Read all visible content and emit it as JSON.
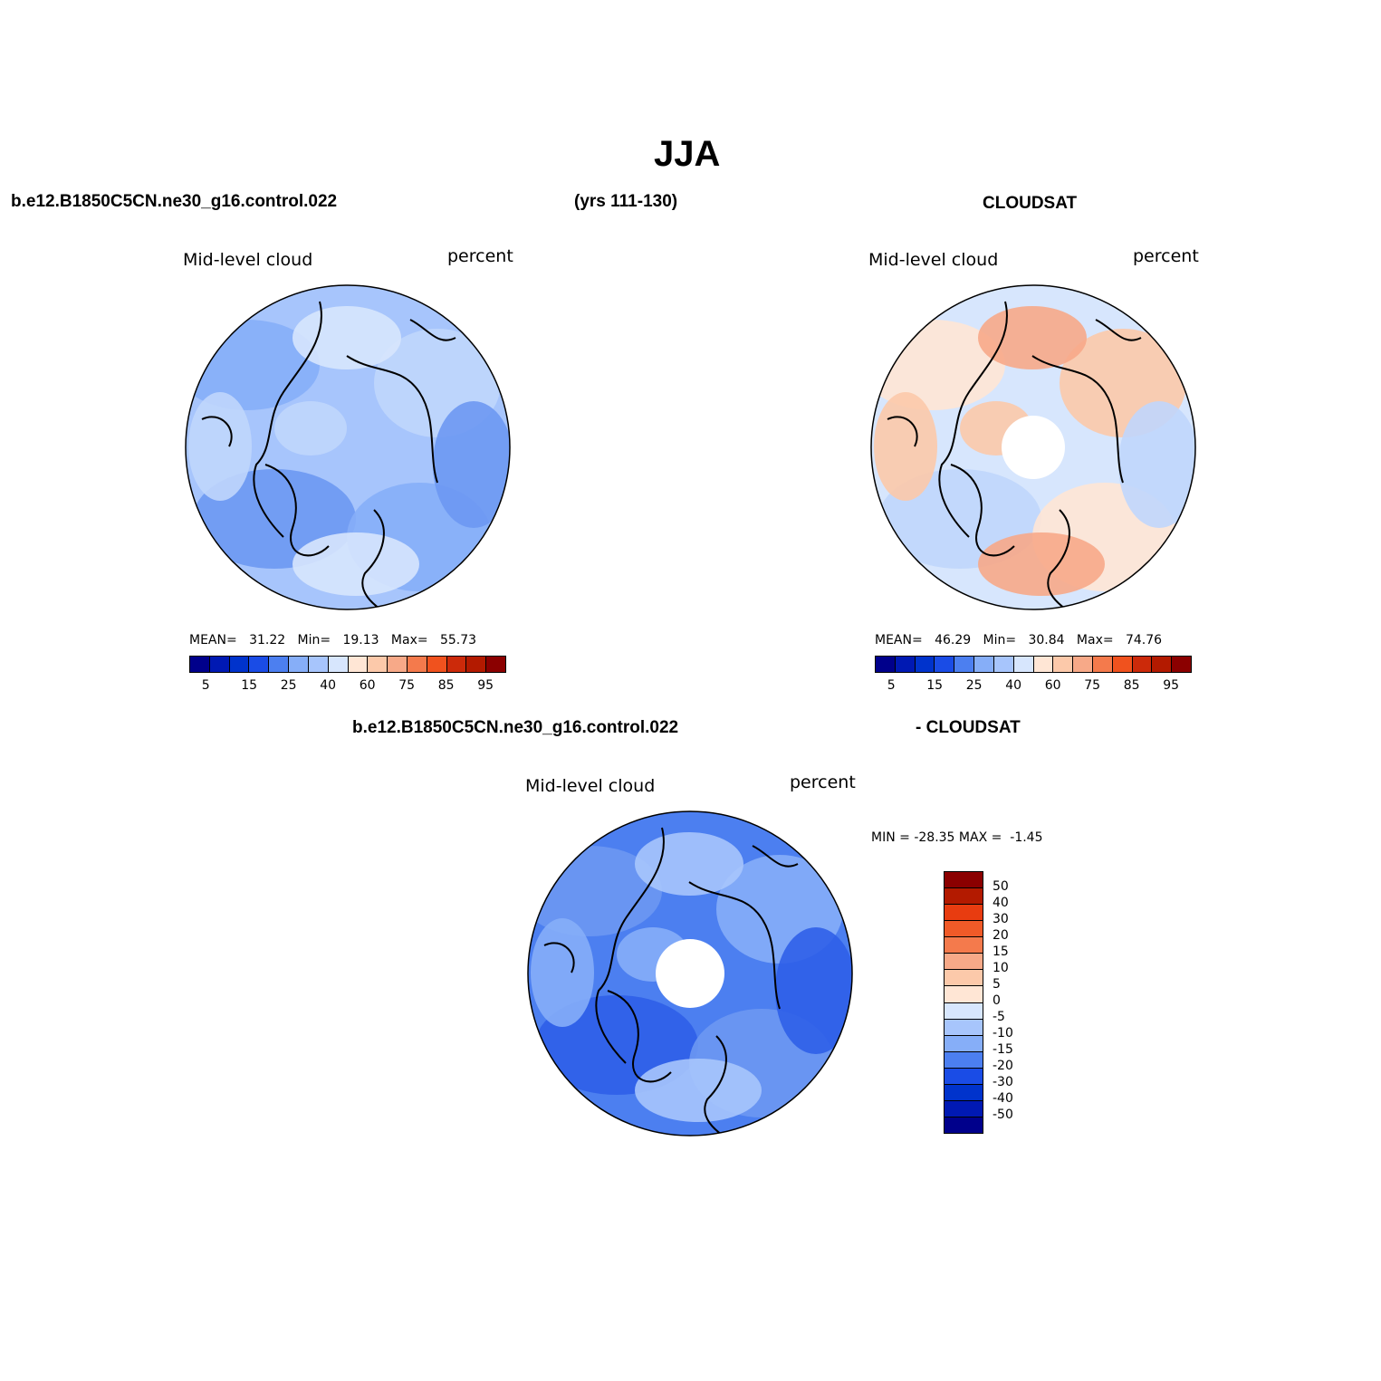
{
  "page": {
    "title": "JJA",
    "case_name": "b.e12.B1850C5CN.ne30_g16.control.022",
    "years": "(yrs 111-130)",
    "obs_name": "CLOUDSAT",
    "diff_case_name": "b.e12.B1850C5CN.ne30_g16.control.022",
    "diff_obs_name": "- CLOUDSAT"
  },
  "panels": [
    {
      "variable": "Mid-level cloud",
      "units": "percent",
      "stats": {
        "mean_label": "MEAN=",
        "mean": "31.22",
        "min_label": "Min=",
        "min": "19.13",
        "max_label": "Max=",
        "max": "55.73"
      },
      "region_colors": [
        "#a7c5fc",
        "#86aef8",
        "#c0d6fc",
        "#6d98f2",
        "#d7e6fd"
      ]
    },
    {
      "variable": "Mid-level cloud",
      "units": "percent",
      "stats": {
        "mean_label": "MEAN=",
        "mean": "46.29",
        "min_label": "Min=",
        "min": "30.84",
        "max_label": "Max=",
        "max": "74.76"
      },
      "region_colors": [
        "#d7e6fd",
        "#ffe6d5",
        "#fcc9aa",
        "#c0d6fc",
        "#f7a988"
      ]
    },
    {
      "variable": "Mid-level cloud",
      "units": "percent",
      "stats": {
        "min_label": "MIN =",
        "min": "-28.35",
        "max_label": "MAX =",
        "max": "-1.45"
      },
      "region_colors": [
        "#4c7ff0",
        "#6d98f2",
        "#86aef8",
        "#2f5fe8",
        "#a7c5fc"
      ]
    }
  ],
  "colorbar_abs": {
    "colors": [
      "#00008b",
      "#0019b3",
      "#0033cc",
      "#1a4ce6",
      "#4c7ff0",
      "#86aef8",
      "#a7c5fc",
      "#d7e6fd",
      "#ffe6d5",
      "#fcc9aa",
      "#f7a988",
      "#f47a4c",
      "#f0521e",
      "#cc2a0a",
      "#b31a00",
      "#8b0000"
    ],
    "labels": [
      "5",
      "15",
      "25",
      "40",
      "60",
      "75",
      "85",
      "95"
    ]
  },
  "colorbar_diff": {
    "colors": [
      "#8b0000",
      "#b31a00",
      "#e83c10",
      "#f05a28",
      "#f47a4c",
      "#f7a988",
      "#fcc9aa",
      "#ffe6d5",
      "#d7e6fd",
      "#a7c5fc",
      "#86aef8",
      "#4c7ff0",
      "#1a4ce6",
      "#0033cc",
      "#0019b3",
      "#00008b"
    ],
    "labels": [
      "50",
      "40",
      "30",
      "20",
      "15",
      "10",
      "5",
      "0",
      "-5",
      "-10",
      "-15",
      "-20",
      "-30",
      "-40",
      "-50"
    ]
  }
}
